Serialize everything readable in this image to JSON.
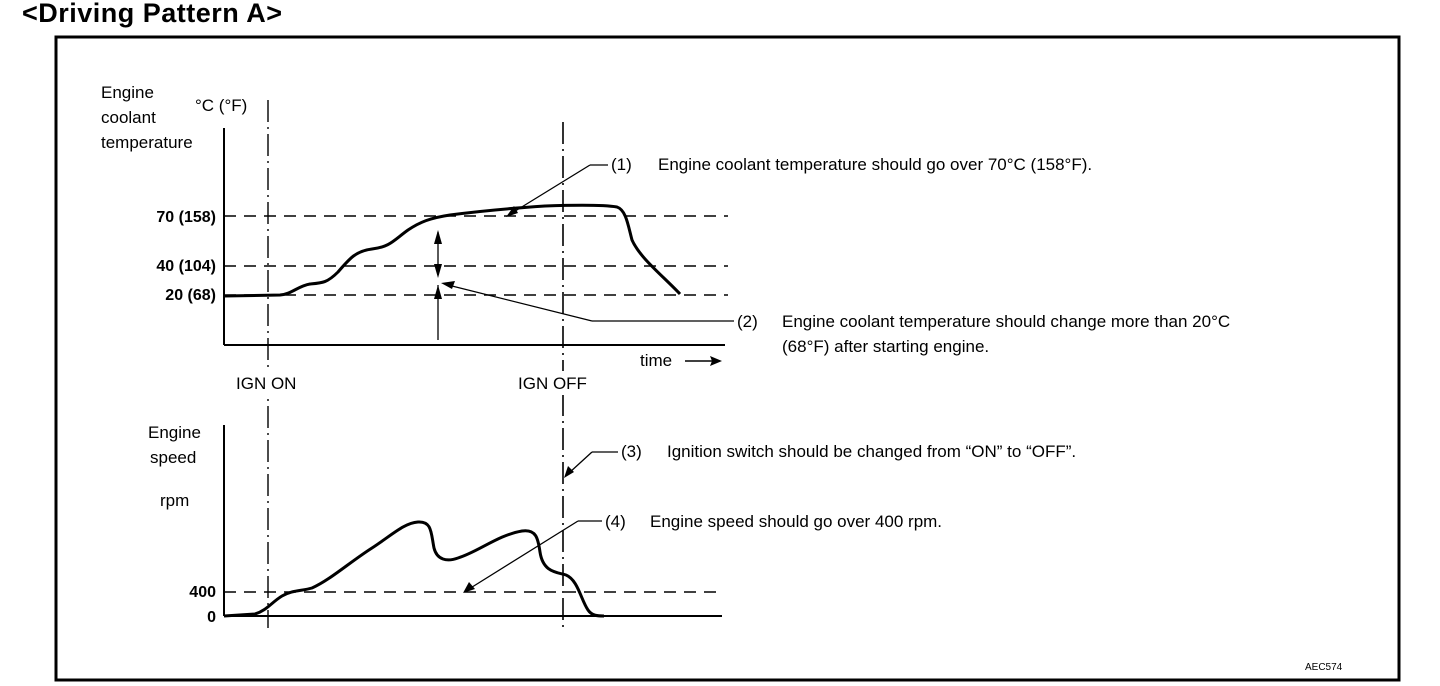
{
  "title": "<Driving Pattern A>",
  "coolant_axis": {
    "label_lines": [
      "Engine",
      "coolant",
      "temperature"
    ],
    "unit": "°C (°F)",
    "ticks": [
      "70 (158)",
      "40 (104)",
      "20 (68)"
    ],
    "x_label": "time"
  },
  "speed_axis": {
    "label_lines": [
      "Engine",
      "speed"
    ],
    "unit": "rpm",
    "ticks": [
      "400",
      "0"
    ]
  },
  "markers": {
    "ign_on": "IGN ON",
    "ign_off": "IGN OFF"
  },
  "notes": [
    {
      "num": "(1)",
      "text": "Engine coolant temperature should go over 70°C (158°F)."
    },
    {
      "num": "(2)",
      "text": "Engine coolant temperature should change more than 20°C",
      "text2": "(68°F) after starting engine."
    },
    {
      "num": "(3)",
      "text": "Ignition switch should be changed from “ON” to “OFF”."
    },
    {
      "num": "(4)",
      "text": "Engine speed should go over 400 rpm."
    }
  ],
  "figure_code": "AEC574",
  "colors": {
    "line": "#000000",
    "background": "#ffffff"
  }
}
